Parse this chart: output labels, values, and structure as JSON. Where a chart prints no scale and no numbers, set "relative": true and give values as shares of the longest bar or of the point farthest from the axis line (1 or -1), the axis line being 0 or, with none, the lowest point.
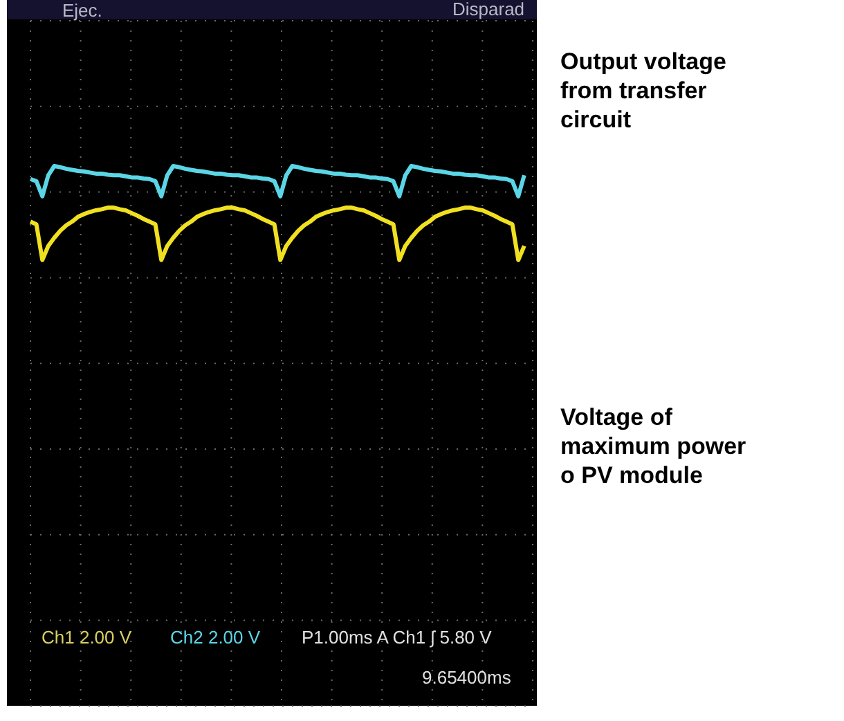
{
  "chart_data": {
    "type": "line",
    "relative": true,
    "grid": true,
    "categories": [
      null,
      null,
      null,
      null,
      null,
      null,
      null,
      null,
      null,
      null,
      null,
      null,
      null,
      null,
      null,
      null,
      null,
      null,
      null,
      null,
      null,
      null,
      null,
      null,
      null,
      null,
      null,
      null,
      null,
      null,
      null,
      null,
      null,
      null,
      null,
      null,
      null,
      null,
      null,
      null,
      null,
      null,
      null,
      null,
      null,
      null,
      null,
      null,
      null,
      null,
      null,
      null,
      null,
      null,
      null,
      null,
      null,
      null,
      null,
      null,
      null,
      null,
      null,
      null,
      null,
      null,
      null,
      null,
      null,
      null,
      null,
      null,
      null,
      null,
      null,
      null,
      null,
      null,
      null,
      null,
      null,
      null,
      null,
      null
    ],
    "series": [
      {
        "color": "#5ad6e6",
        "values": [
          0.976,
          0.972,
          0.944,
          0.983,
          1,
          0.998,
          0.995,
          0.993,
          0.991,
          0.99,
          0.988,
          0.986,
          0.986,
          0.984,
          0.983,
          0.983,
          0.981,
          0.979,
          0.979,
          0.977,
          0.976,
          0.972,
          0.944,
          0.983,
          1,
          0.998,
          0.995,
          0.993,
          0.991,
          0.99,
          0.988,
          0.986,
          0.986,
          0.984,
          0.983,
          0.983,
          0.981,
          0.979,
          0.979,
          0.977,
          0.976,
          0.972,
          0.944,
          0.983,
          1,
          0.998,
          0.995,
          0.993,
          0.991,
          0.99,
          0.988,
          0.986,
          0.986,
          0.984,
          0.983,
          0.983,
          0.981,
          0.979,
          0.979,
          0.977,
          0.976,
          0.972,
          0.944,
          0.983,
          1,
          0.998,
          0.995,
          0.993,
          0.991,
          0.99,
          0.988,
          0.986,
          0.986,
          0.984,
          0.983,
          0.983,
          0.981,
          0.979,
          0.979,
          0.977,
          0.976,
          0.972,
          0.944,
          0.983
        ]
      },
      {
        "color": "#f0e020",
        "values": [
          0.897,
          0.892,
          0.826,
          0.852,
          0.867,
          0.88,
          0.89,
          0.897,
          0.906,
          0.911,
          0.915,
          0.918,
          0.92,
          0.923,
          0.923,
          0.92,
          0.918,
          0.913,
          0.908,
          0.902,
          0.897,
          0.892,
          0.826,
          0.852,
          0.867,
          0.88,
          0.89,
          0.897,
          0.906,
          0.911,
          0.915,
          0.918,
          0.92,
          0.923,
          0.923,
          0.92,
          0.918,
          0.913,
          0.908,
          0.902,
          0.897,
          0.892,
          0.826,
          0.852,
          0.867,
          0.88,
          0.89,
          0.897,
          0.906,
          0.911,
          0.915,
          0.918,
          0.92,
          0.923,
          0.923,
          0.92,
          0.918,
          0.913,
          0.908,
          0.902,
          0.897,
          0.892,
          0.826,
          0.852,
          0.867,
          0.88,
          0.89,
          0.897,
          0.906,
          0.911,
          0.915,
          0.918,
          0.92,
          0.923,
          0.923,
          0.92,
          0.918,
          0.913,
          0.908,
          0.902,
          0.897,
          0.892,
          0.826,
          0.852
        ]
      }
    ],
    "annotations": [
      "Ejec.",
      "Disparad",
      "Ch1 2.00 V",
      "Ch2 2.00 V",
      "P1.00ms A Ch1 ʃ 5.80 V",
      "9.65400ms",
      "Output voltage from transfer circuit",
      "Voltage of maximum power o PV module"
    ]
  }
}
